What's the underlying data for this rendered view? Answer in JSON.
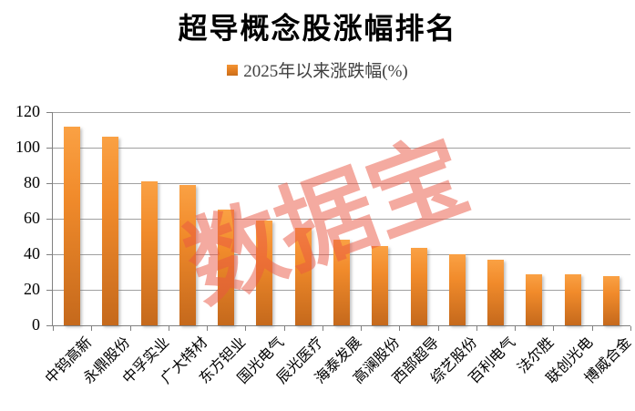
{
  "title": "超导概念股涨幅排名",
  "legend": {
    "label": "2025年以来涨跌幅(%)"
  },
  "watermark": "数据宝",
  "chart_data": {
    "type": "bar",
    "title": "超导概念股涨幅排名",
    "legend_entries": [
      "2025年以来涨跌幅(%)"
    ],
    "legend_position": "top",
    "categories": [
      "中钨高新",
      "永鼎股份",
      "中孚实业",
      "广大特材",
      "东方钽业",
      "国光电气",
      "辰光医疗",
      "海泰发展",
      "高澜股份",
      "西部超导",
      "综艺股份",
      "百利电气",
      "法尔胜",
      "联创光电",
      "博威合金"
    ],
    "values": [
      112,
      106,
      81,
      79,
      65,
      59,
      55,
      48,
      44.5,
      43.5,
      40,
      37,
      28.5,
      28.5,
      27.5
    ],
    "xlabel": "",
    "ylabel": "",
    "ylim": [
      0,
      120
    ],
    "yticks": [
      0,
      20,
      40,
      60,
      80,
      100,
      120
    ],
    "grid": true,
    "x_label_rotation_deg": 45,
    "watermark_text": "数据宝",
    "colors": {
      "bar_gradient_top": "#FAA144",
      "bar_gradient_bottom": "#C5691C",
      "legend_swatch": "#E07B1F",
      "gridline": "#A0A0A0",
      "axis": "#808080",
      "title_text": "#000000",
      "legend_text": "#404040",
      "watermark": "#E95642"
    }
  }
}
